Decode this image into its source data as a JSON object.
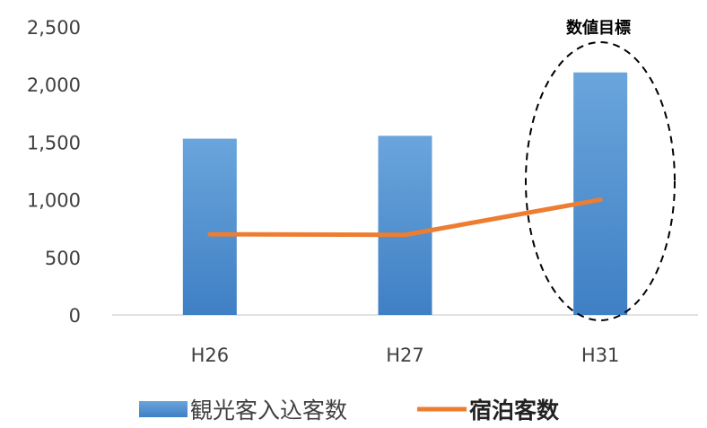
{
  "chart_data": {
    "type": "bar+line",
    "categories": [
      "H26",
      "H27",
      "H31"
    ],
    "series": [
      {
        "name": "観光客入込客数",
        "type": "bar",
        "values": [
          1530,
          1555,
          2105
        ]
      },
      {
        "name": "宿泊客数",
        "type": "line",
        "values": [
          700,
          695,
          1000
        ]
      }
    ],
    "ylim": [
      0,
      2500
    ],
    "yticks": [
      0,
      500,
      1000,
      1500,
      2000,
      2500
    ],
    "ytick_labels": [
      "0",
      "500",
      "1,000",
      "1,500",
      "2,000",
      "2,500"
    ],
    "annotation": {
      "text": "数値目標",
      "category": "H31"
    },
    "legend_position": "bottom",
    "grid": false,
    "colors": {
      "bar_top": "#6aa5dc",
      "bar_bottom": "#3f7fc4",
      "line": "#ed7d31",
      "axis": "#d9d9d9"
    }
  }
}
